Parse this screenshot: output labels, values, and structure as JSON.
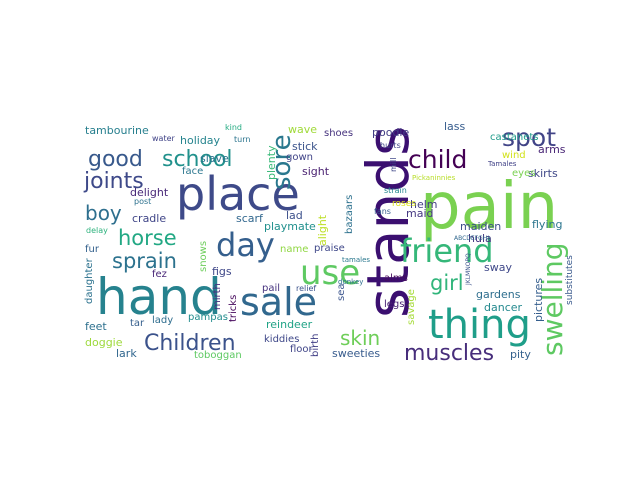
{
  "wordcloud": {
    "words": [
      {
        "text": "pain",
        "color": "#7ad151"
      },
      {
        "text": "stands",
        "color": "#3b0f70"
      },
      {
        "text": "place",
        "color": "#3e4a89"
      },
      {
        "text": "hand",
        "color": "#26828e"
      },
      {
        "text": "sale",
        "color": "#31688e"
      },
      {
        "text": "thing",
        "color": "#1f9e89"
      },
      {
        "text": "friend",
        "color": "#35b779"
      },
      {
        "text": "use",
        "color": "#5ec962"
      },
      {
        "text": "day",
        "color": "#355f8d"
      },
      {
        "text": "swelling",
        "color": "#5ec962"
      },
      {
        "text": "child",
        "color": "#440154"
      },
      {
        "text": "spot",
        "color": "#414487"
      },
      {
        "text": "muscles",
        "color": "#472d7b"
      },
      {
        "text": "sore",
        "color": "#2a788e"
      },
      {
        "text": "Children",
        "color": "#3b528b"
      },
      {
        "text": "school",
        "color": "#21918c"
      },
      {
        "text": "good",
        "color": "#38598c"
      },
      {
        "text": "joints",
        "color": "#3e4989"
      },
      {
        "text": "sprain",
        "color": "#2c728e"
      },
      {
        "text": "horse",
        "color": "#22a884"
      },
      {
        "text": "girl",
        "color": "#31b57b"
      },
      {
        "text": "skin",
        "color": "#6ece58"
      },
      {
        "text": "boy",
        "color": "#2e6f8e"
      },
      {
        "text": "tambourine",
        "color": "#277f8e"
      },
      {
        "text": "wave",
        "color": "#a0da39"
      },
      {
        "text": "shoes",
        "color": "#46337e"
      },
      {
        "text": "poodle",
        "color": "#433e85"
      },
      {
        "text": "lass",
        "color": "#365c8d"
      },
      {
        "text": "castanets",
        "color": "#1e9b8a"
      },
      {
        "text": "arms",
        "color": "#482475"
      },
      {
        "text": "skirts",
        "color": "#3f4788"
      },
      {
        "text": "wind",
        "color": "#d2e21b"
      },
      {
        "text": "holiday",
        "color": "#25848e"
      },
      {
        "text": "slave",
        "color": "#2c738e"
      },
      {
        "text": "plenty",
        "color": "#38b977"
      },
      {
        "text": "stick",
        "color": "#3a538b"
      },
      {
        "text": "gown",
        "color": "#404387"
      },
      {
        "text": "sight",
        "color": "#481f70"
      },
      {
        "text": "delight",
        "color": "#482878"
      },
      {
        "text": "face",
        "color": "#2a768e"
      },
      {
        "text": "cradle",
        "color": "#404688"
      },
      {
        "text": "scarf",
        "color": "#31678e"
      },
      {
        "text": "playmate",
        "color": "#21908d"
      },
      {
        "text": "lad",
        "color": "#3c508b"
      },
      {
        "text": "alight",
        "color": "#bddf26"
      },
      {
        "text": "bazaars",
        "color": "#2d718e"
      },
      {
        "text": "helm",
        "color": "#433d84"
      },
      {
        "text": "maid",
        "color": "#453882"
      },
      {
        "text": "maiden",
        "color": "#3d4e8a"
      },
      {
        "text": "flying",
        "color": "#2b758e"
      },
      {
        "text": "hula",
        "color": "#453581"
      },
      {
        "text": "sway",
        "color": "#3f4889"
      },
      {
        "text": "gardens",
        "color": "#2e6e8e"
      },
      {
        "text": "dancer",
        "color": "#23898e"
      },
      {
        "text": "pictures",
        "color": "#355e8d"
      },
      {
        "text": "substitutes",
        "color": "#38588c"
      },
      {
        "text": "fur",
        "color": "#34618d"
      },
      {
        "text": "snows",
        "color": "#6ccd5a"
      },
      {
        "text": "name",
        "color": "#90d743"
      },
      {
        "text": "praise",
        "color": "#3f4889"
      },
      {
        "text": "figs",
        "color": "#3f4788"
      },
      {
        "text": "fez",
        "color": "#482677"
      },
      {
        "text": "daughter",
        "color": "#2c728e"
      },
      {
        "text": "feet",
        "color": "#2d708e"
      },
      {
        "text": "tar",
        "color": "#355f8d"
      },
      {
        "text": "lady",
        "color": "#2e6d8e"
      },
      {
        "text": "pail",
        "color": "#46337f"
      },
      {
        "text": "relief",
        "color": "#3b528b"
      },
      {
        "text": "mirth",
        "color": "#472f7d"
      },
      {
        "text": "tricks",
        "color": "#46085c"
      },
      {
        "text": "pampas",
        "color": "#228c8d"
      },
      {
        "text": "reindeer",
        "color": "#20a386"
      },
      {
        "text": "kiddies",
        "color": "#3f4889"
      },
      {
        "text": "birth",
        "color": "#424086"
      },
      {
        "text": "sea",
        "color": "#3a548c"
      },
      {
        "text": "alms",
        "color": "#460b5e"
      },
      {
        "text": "legs",
        "color": "#482173"
      },
      {
        "text": "savage",
        "color": "#a5db36"
      },
      {
        "text": "roses",
        "color": "#dde318"
      },
      {
        "text": "doggie",
        "color": "#9dd93b"
      },
      {
        "text": "lark",
        "color": "#31668e"
      },
      {
        "text": "toboggan",
        "color": "#5ec962"
      },
      {
        "text": "floor",
        "color": "#404588"
      },
      {
        "text": "sweeties",
        "color": "#375b8d"
      },
      {
        "text": "pity",
        "color": "#34618d"
      },
      {
        "text": "turn",
        "color": "#2b748e"
      },
      {
        "text": "kind",
        "color": "#25ab82"
      },
      {
        "text": "water",
        "color": "#404387"
      },
      {
        "text": "post",
        "color": "#2d718e"
      },
      {
        "text": "delay",
        "color": "#2db27d"
      },
      {
        "text": "Tamales",
        "color": "#414287"
      },
      {
        "text": "ABCDEFGHI",
        "color": "#31688e"
      },
      {
        "text": "JKLMNOPQ",
        "color": "#3b528b"
      },
      {
        "text": "donkey",
        "color": "#2e6e8e"
      },
      {
        "text": "strain",
        "color": "#24868e"
      },
      {
        "text": "hurts",
        "color": "#404387"
      },
      {
        "text": "Pickaninnies",
        "color": "#b8de29"
      },
      {
        "text": "mill",
        "color": "#3f4788"
      },
      {
        "text": "eyes",
        "color": "#7ad151"
      },
      {
        "text": "tamales",
        "color": "#2a788e"
      },
      {
        "text": "fans",
        "color": "#365c8d"
      }
    ]
  }
}
